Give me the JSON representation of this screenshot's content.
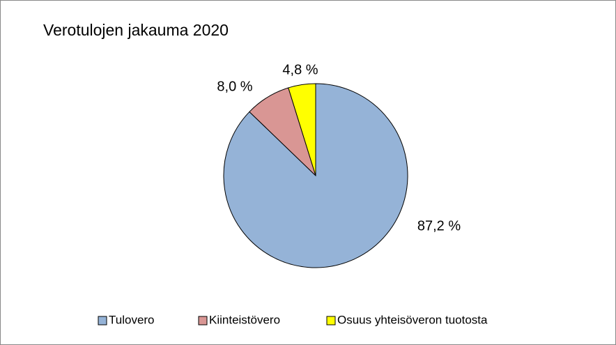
{
  "chart_data": {
    "type": "pie",
    "title": "Verotulojen jakauma 2020",
    "categories": [
      "Tulovero",
      "Kiinteistövero",
      "Osuus yhteisöveron tuotosta"
    ],
    "values": [
      87.2,
      8.0,
      4.8
    ],
    "value_labels": [
      "87,2 %",
      "8,0 %",
      "4,8 %"
    ],
    "colors": [
      "#95b3d7",
      "#d99694",
      "#ffff00"
    ],
    "legend": "bottom"
  }
}
